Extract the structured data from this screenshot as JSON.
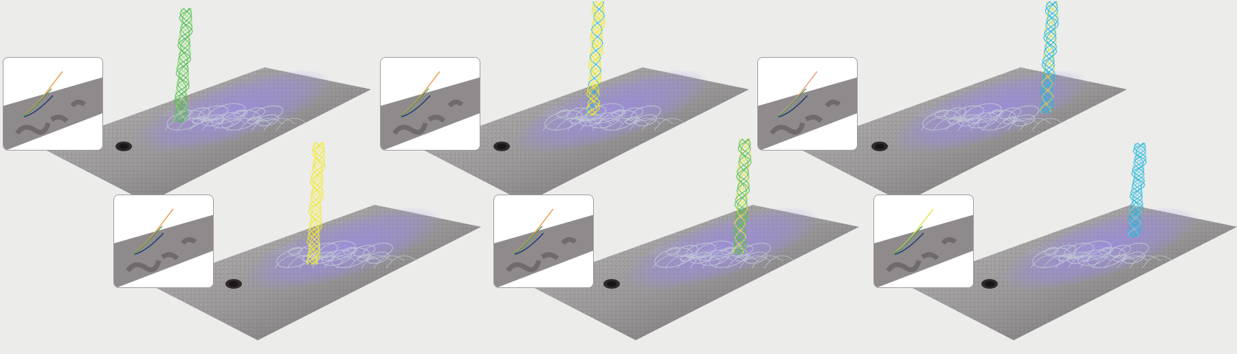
{
  "scene": {
    "background_color": "#ececeb",
    "surface_colors": {
      "light": "#9c9a9b",
      "dark": "#6c6769",
      "highlight": "#bdb9bb"
    },
    "magnetic_overlay_color": "#9b8be0",
    "loop_line_color": "#c7d2d8",
    "panels": [
      {
        "id": "panel-1",
        "row": "top",
        "column": "left",
        "flux_rope_color": "#4fbe4f",
        "flux_rope_secondary_color": "#9be07a",
        "inset_curve_colors": [
          "#f29a4c",
          "#1f3a6b",
          "#4c9a5a"
        ]
      },
      {
        "id": "panel-2",
        "row": "top",
        "column": "middle",
        "flux_rope_color": "#f0ea2a",
        "flux_rope_secondary_color": "#2ab7d9",
        "inset_curve_colors": [
          "#f29a4c",
          "#1f3a6b",
          "#4c9a5a"
        ]
      },
      {
        "id": "panel-3",
        "row": "top",
        "column": "right",
        "flux_rope_color": "#2ab7d9",
        "flux_rope_secondary_color": "#c9e04b",
        "inset_curve_colors": [
          "#f29a7a",
          "#1f3a6b",
          "#4c9a5a"
        ]
      },
      {
        "id": "panel-4",
        "row": "bottom",
        "column": "left",
        "flux_rope_color": "#f0ea2a",
        "flux_rope_secondary_color": "#f6ef6a",
        "inset_curve_colors": [
          "#f29a4c",
          "#1f3a6b",
          "#4c9a5a"
        ]
      },
      {
        "id": "panel-5",
        "row": "bottom",
        "column": "middle",
        "flux_rope_color": "#5cc04d",
        "flux_rope_secondary_color": "#e8e64a",
        "inset_curve_colors": [
          "#f29a4c",
          "#1f3a6b",
          "#4c9a5a"
        ]
      },
      {
        "id": "panel-6",
        "row": "bottom",
        "column": "right",
        "flux_rope_color": "#2ab7d9",
        "flux_rope_secondary_color": "#6fd0e6",
        "inset_curve_colors": [
          "#e4e44a",
          "#1f3a6b",
          "#4c9a5a"
        ]
      }
    ]
  }
}
